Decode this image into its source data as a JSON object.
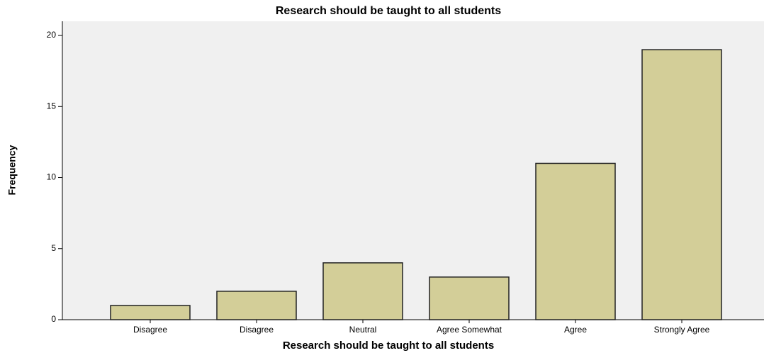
{
  "chart_data": {
    "type": "bar",
    "title": "Research should be taught to all students",
    "x_label": "Research should be taught to all students",
    "y_label": "Frequency",
    "categories": [
      "Disagree",
      "Disagree",
      "Neutral",
      "Agree Somewhat",
      "Agree",
      "Strongly Agree"
    ],
    "values": [
      1,
      2,
      4,
      3,
      11,
      19
    ],
    "color": "#d3ce98",
    "ylim": [
      0,
      21
    ],
    "yticks": [
      0,
      5,
      10,
      15,
      20
    ],
    "grid": false
  }
}
